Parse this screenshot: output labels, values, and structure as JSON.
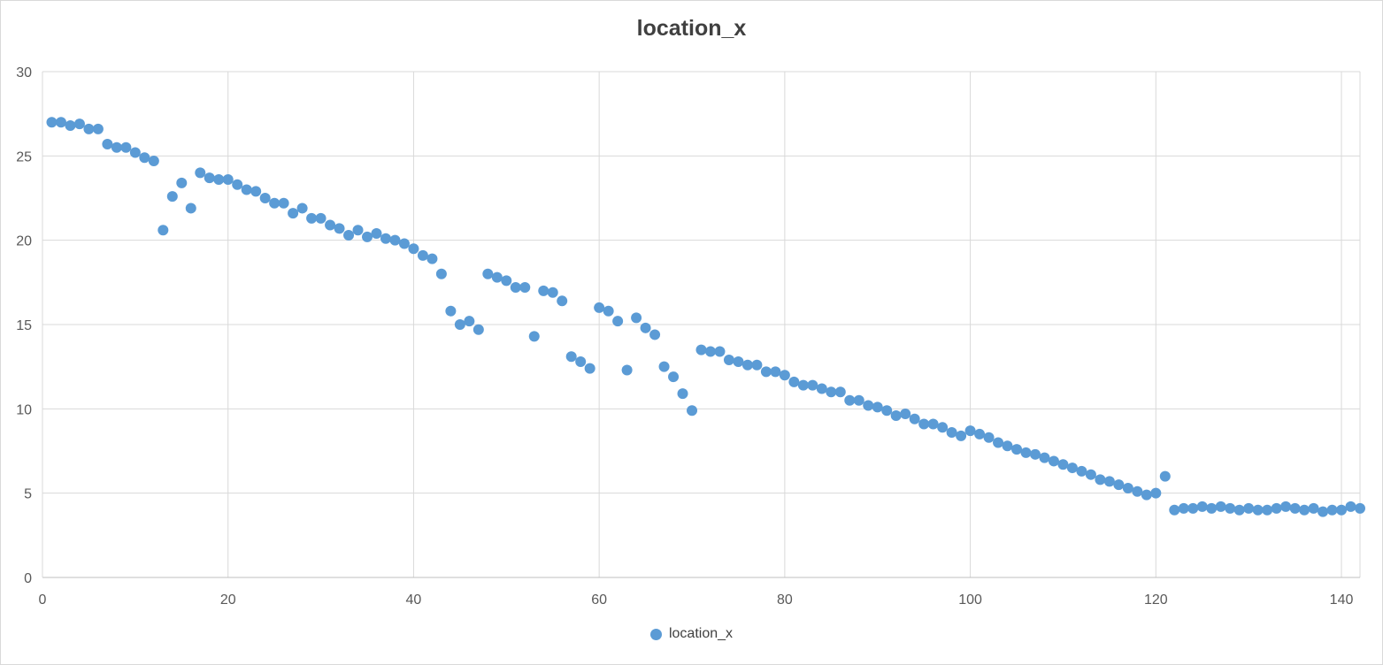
{
  "chart_data": {
    "type": "scatter",
    "title": "location_x",
    "xlabel": "",
    "ylabel": "",
    "xlim": [
      0,
      142
    ],
    "ylim": [
      0,
      30
    ],
    "xticks": [
      0,
      20,
      40,
      60,
      80,
      100,
      120,
      140
    ],
    "yticks": [
      0,
      5,
      10,
      15,
      20,
      25,
      30
    ],
    "grid": true,
    "legend_position": "bottom",
    "color": "#5b9bd5",
    "series": [
      {
        "name": "location_x",
        "x": [
          1,
          2,
          3,
          4,
          5,
          6,
          7,
          8,
          9,
          10,
          11,
          12,
          13,
          14,
          15,
          16,
          17,
          18,
          19,
          20,
          21,
          22,
          23,
          24,
          25,
          26,
          27,
          28,
          29,
          30,
          31,
          32,
          33,
          34,
          35,
          36,
          37,
          38,
          39,
          40,
          41,
          42,
          43,
          44,
          45,
          46,
          47,
          48,
          49,
          50,
          51,
          52,
          53,
          54,
          55,
          56,
          57,
          58,
          59,
          60,
          61,
          62,
          63,
          64,
          65,
          66,
          67,
          68,
          69,
          70,
          71,
          72,
          73,
          74,
          75,
          76,
          77,
          78,
          79,
          80,
          81,
          82,
          83,
          84,
          85,
          86,
          87,
          88,
          89,
          90,
          91,
          92,
          93,
          94,
          95,
          96,
          97,
          98,
          99,
          100,
          101,
          102,
          103,
          104,
          105,
          106,
          107,
          108,
          109,
          110,
          111,
          112,
          113,
          114,
          115,
          116,
          117,
          118,
          119,
          120,
          121,
          122,
          123,
          124,
          125,
          126,
          127,
          128,
          129,
          130,
          131,
          132,
          133,
          134,
          135,
          136,
          137,
          138,
          139,
          140,
          141,
          142
        ],
        "y": [
          27.0,
          27.0,
          26.8,
          26.9,
          26.6,
          26.6,
          25.7,
          25.5,
          25.5,
          25.2,
          24.9,
          24.7,
          20.6,
          22.6,
          23.4,
          21.9,
          24.0,
          23.7,
          23.6,
          23.6,
          23.3,
          23.0,
          22.9,
          22.5,
          22.2,
          22.2,
          21.6,
          21.9,
          21.3,
          21.3,
          20.9,
          20.7,
          20.3,
          20.6,
          20.2,
          20.4,
          20.1,
          20.0,
          19.8,
          19.5,
          19.1,
          18.9,
          18.0,
          15.8,
          15.0,
          15.2,
          14.7,
          18.0,
          17.8,
          17.6,
          17.2,
          17.2,
          14.3,
          17.0,
          16.9,
          16.4,
          13.1,
          12.8,
          12.4,
          16.0,
          15.8,
          15.2,
          12.3,
          15.4,
          14.8,
          14.4,
          12.5,
          11.9,
          10.9,
          9.9,
          13.5,
          13.4,
          13.4,
          12.9,
          12.8,
          12.6,
          12.6,
          12.2,
          12.2,
          12.0,
          11.6,
          11.4,
          11.4,
          11.2,
          11.0,
          11.0,
          10.5,
          10.5,
          10.2,
          10.1,
          9.9,
          9.6,
          9.7,
          9.4,
          9.1,
          9.1,
          8.9,
          8.6,
          8.4,
          8.7,
          8.5,
          8.3,
          8.0,
          7.8,
          7.6,
          7.4,
          7.3,
          7.1,
          6.9,
          6.7,
          6.5,
          6.3,
          6.1,
          5.8,
          5.7,
          5.5,
          5.3,
          5.1,
          4.9,
          5.0,
          6.0,
          4.0,
          4.1,
          4.1,
          4.2,
          4.1,
          4.2,
          4.1,
          4.0,
          4.1,
          4.0,
          4.0,
          4.1,
          4.2,
          4.1,
          4.0,
          4.1,
          3.9,
          4.0,
          4.0,
          4.2,
          4.1
        ]
      }
    ]
  }
}
